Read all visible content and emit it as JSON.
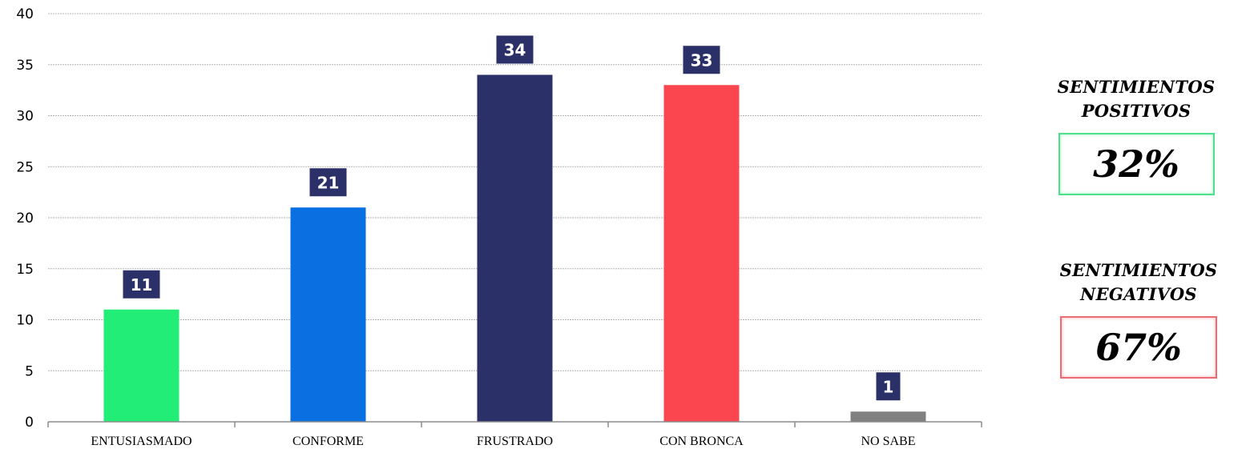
{
  "chart_data": {
    "type": "bar",
    "categories": [
      "ENTUSIASMADO",
      "CONFORME",
      "FRUSTRADO",
      "CON BRONCA",
      "NO SABE"
    ],
    "values": [
      11,
      21,
      34,
      33,
      1
    ],
    "colors": [
      "#22ee77",
      "#0a6fe0",
      "#2b3168",
      "#fb4650",
      "#808080"
    ],
    "data_label_bg": "#2b3168",
    "ylim": [
      0,
      40
    ],
    "yticks": [
      0,
      5,
      10,
      15,
      20,
      25,
      30,
      35,
      40
    ],
    "grid": true,
    "title": "",
    "xlabel": "",
    "ylabel": ""
  },
  "summary": {
    "positive": {
      "title_line1": "SENTIMIENTOS",
      "title_line2": "POSITIVOS",
      "value": "32%",
      "border_color": "#4ee08a"
    },
    "negative": {
      "title_line1": "SENTIMIENTOS",
      "title_line2": "NEGATIVOS",
      "value": "67%",
      "border_color": "#f06a72"
    }
  }
}
